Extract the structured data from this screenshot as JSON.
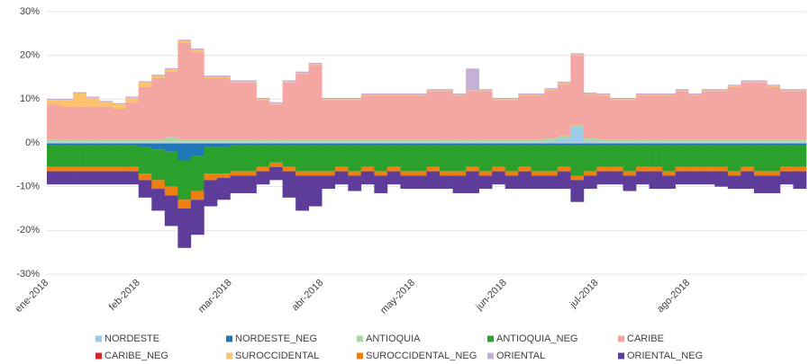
{
  "chart_data": {
    "type": "stacked-bar",
    "categories": [
      "ene-2018",
      null,
      null,
      null,
      null,
      null,
      null,
      "feb-2018",
      null,
      null,
      null,
      null,
      null,
      null,
      "mar-2018",
      null,
      null,
      null,
      null,
      null,
      null,
      "abr-2018",
      null,
      null,
      null,
      null,
      null,
      null,
      "may-2018",
      null,
      null,
      null,
      null,
      null,
      null,
      "jun-2018",
      null,
      null,
      null,
      null,
      null,
      null,
      "jul-2018",
      null,
      null,
      null,
      null,
      null,
      null,
      "ago-2018",
      null,
      null,
      null,
      null,
      null,
      null,
      null,
      null
    ],
    "series": [
      {
        "name": "NORDESTE",
        "color": "#9ecae9",
        "values": [
          0.3,
          0.3,
          0.3,
          0.3,
          0.3,
          0.3,
          0.3,
          0.3,
          0.3,
          0.3,
          0.3,
          0.3,
          0.3,
          0.3,
          0.3,
          0.3,
          0.3,
          0.3,
          0.3,
          0.3,
          0.3,
          0.3,
          0.3,
          0.3,
          0.3,
          0.3,
          0.3,
          0.3,
          0.3,
          0.3,
          0.3,
          0.3,
          0.3,
          0.3,
          0.3,
          0.3,
          0.3,
          0.3,
          0.5,
          1,
          3.5,
          0.5,
          0.3,
          0.3,
          0.3,
          0.3,
          0.3,
          0.3,
          0.3,
          0.3,
          0.3,
          0.3,
          0.3,
          0.3,
          0.3,
          0.3,
          0.3,
          0.3
        ]
      },
      {
        "name": "NORDESTE_NEG",
        "color": "#1f77b4",
        "values": [
          -0.5,
          -0.5,
          -0.5,
          -0.5,
          -0.5,
          -0.5,
          -0.5,
          -1,
          -1.5,
          -2,
          -4,
          -3,
          -1,
          -1,
          -0.5,
          -0.5,
          -0.5,
          -0.5,
          -0.5,
          -0.5,
          -0.5,
          -0.5,
          -0.5,
          -0.5,
          -0.5,
          -0.5,
          -0.5,
          -0.5,
          -0.5,
          -0.5,
          -0.5,
          -0.5,
          -0.5,
          -0.5,
          -0.5,
          -0.5,
          -0.5,
          -0.5,
          -0.5,
          -0.5,
          -0.5,
          -0.5,
          -0.5,
          -0.5,
          -0.5,
          -0.5,
          -0.5,
          -0.5,
          -0.5,
          -0.5,
          -0.5,
          -0.5,
          -0.5,
          -0.5,
          -0.5,
          -0.5,
          -0.5,
          -0.5
        ]
      },
      {
        "name": "ANTIOQUIA",
        "color": "#a6dba0",
        "values": [
          0.5,
          0.5,
          0.5,
          0.5,
          0.5,
          0.5,
          0.5,
          0.5,
          0.5,
          1,
          0.5,
          0.5,
          0.5,
          0.5,
          0.5,
          0.5,
          0.5,
          0.5,
          0.5,
          0.5,
          0.5,
          0.5,
          0.5,
          0.5,
          0.5,
          0.5,
          0.5,
          0.5,
          0.5,
          0.5,
          0.5,
          0.5,
          0.5,
          0.5,
          0.5,
          0.5,
          0.5,
          0.5,
          0.5,
          0.5,
          0.5,
          0.5,
          0.5,
          0.5,
          0.5,
          0.5,
          0.5,
          0.5,
          0.5,
          0.5,
          0.5,
          0.5,
          0.5,
          0.5,
          0.5,
          0.5,
          0.5,
          0.5
        ]
      },
      {
        "name": "ANTIOQUIA_NEG",
        "color": "#2ca02c",
        "values": [
          -5,
          -5,
          -5,
          -5,
          -5,
          -5,
          -5,
          -6,
          -7,
          -8,
          -9,
          -8,
          -6,
          -6,
          -6,
          -6,
          -5,
          -4,
          -5,
          -6,
          -6,
          -6,
          -5,
          -6,
          -5,
          -6,
          -5,
          -6,
          -6,
          -5,
          -6,
          -6,
          -5,
          -6,
          -5,
          -6,
          -5,
          -6,
          -6,
          -5,
          -7,
          -6,
          -5,
          -5,
          -6,
          -5,
          -5,
          -6,
          -5,
          -5,
          -5,
          -5,
          -6,
          -5,
          -6,
          -6,
          -5,
          -5
        ]
      },
      {
        "name": "CARIBE",
        "color": "#f4a6a3",
        "values": [
          8,
          7.5,
          7.5,
          7.5,
          7.5,
          7,
          8.5,
          12,
          14,
          15,
          22,
          20,
          14,
          14,
          13,
          13,
          9,
          8,
          13,
          15,
          17,
          9,
          9,
          9,
          10,
          10,
          10,
          10,
          10,
          11,
          11,
          10,
          11,
          11,
          9,
          9,
          10,
          10,
          11,
          12,
          16,
          10,
          10,
          9,
          9,
          10,
          10,
          10,
          11,
          10,
          11,
          11,
          12,
          13,
          13,
          12,
          11,
          11
        ]
      },
      {
        "name": "CARIBE_NEG",
        "color": "#d62728",
        "values": [
          0,
          0,
          0,
          0,
          0,
          0,
          0,
          0,
          0,
          0,
          0,
          0,
          0,
          0,
          0,
          0,
          0,
          0,
          0,
          0,
          0,
          0,
          0,
          0,
          0,
          0,
          0,
          0,
          0,
          0,
          0,
          0,
          0,
          0,
          0,
          0,
          0,
          0,
          0,
          0,
          0,
          0,
          0,
          0,
          0,
          0,
          0,
          0,
          0,
          0,
          0,
          0,
          0,
          0,
          0,
          0,
          0,
          0
        ]
      },
      {
        "name": "SUROCCIDENTAL",
        "color": "#fdc26b",
        "values": [
          1,
          1.5,
          3,
          2,
          1,
          1,
          1,
          1,
          0.5,
          0.5,
          0.5,
          0.5,
          0.3,
          0.3,
          0.2,
          0.2,
          0.2,
          0.2,
          0.2,
          0.2,
          0.2,
          0.2,
          0.2,
          0.2,
          0.2,
          0.2,
          0.2,
          0.2,
          0.2,
          0.2,
          0.2,
          0.2,
          0.2,
          0.2,
          0.2,
          0.2,
          0.2,
          0.2,
          0.2,
          0.2,
          0.2,
          0.2,
          0.2,
          0.2,
          0.2,
          0.2,
          0.2,
          0.2,
          0.2,
          0.2,
          0.2,
          0.2,
          0.2,
          0.2,
          0.2,
          0.2,
          0.2,
          0.2
        ]
      },
      {
        "name": "SUROCCIDENTAL_NEG",
        "color": "#f07f12",
        "values": [
          -1,
          -1,
          -1,
          -1,
          -1,
          -1,
          -1,
          -1.5,
          -2,
          -2,
          -2,
          -2,
          -1.5,
          -1,
          -1,
          -1,
          -1,
          -1,
          -1,
          -1,
          -1,
          -1,
          -1,
          -1,
          -1,
          -1,
          -1,
          -1,
          -1,
          -1,
          -1,
          -1,
          -1,
          -1,
          -1,
          -1,
          -1,
          -1,
          -1,
          -1,
          -1,
          -1,
          -1,
          -1,
          -1,
          -1,
          -1,
          -1,
          -1,
          -1,
          -1,
          -1,
          -1,
          -1,
          -1,
          -1,
          -1,
          -1
        ]
      },
      {
        "name": "ORIENTAL",
        "color": "#c5b0d5",
        "values": [
          0.3,
          0.3,
          0.3,
          0.3,
          0.3,
          0.3,
          0.3,
          0.3,
          0.3,
          0.3,
          0.3,
          0.3,
          0.3,
          0.3,
          0.3,
          0.3,
          0.3,
          0.3,
          0.3,
          0.3,
          0.3,
          0.3,
          0.3,
          0.3,
          0.3,
          0.3,
          0.3,
          0.3,
          0.3,
          0.3,
          0.3,
          0.3,
          5,
          0.3,
          0.3,
          0.3,
          0.3,
          0.3,
          0.3,
          0.3,
          0.3,
          0.3,
          0.3,
          0.3,
          0.3,
          0.3,
          0.3,
          0.3,
          0.3,
          0.3,
          0.3,
          0.3,
          0.3,
          0.3,
          0.3,
          0.3,
          0.3,
          0.3
        ]
      },
      {
        "name": "ORIENTAL_NEG",
        "color": "#5e3c99",
        "values": [
          -3,
          -3,
          -3,
          -3,
          -3,
          -3,
          -3,
          -4,
          -5,
          -7,
          -9,
          -8,
          -6,
          -5,
          -4,
          -4,
          -3,
          -3,
          -6,
          -8,
          -7,
          -3,
          -3,
          -3.5,
          -3,
          -4,
          -3,
          -3,
          -3,
          -4,
          -3,
          -4,
          -5,
          -3,
          -3,
          -3,
          -4,
          -3,
          -3,
          -4,
          -5,
          -3,
          -3,
          -3,
          -3.5,
          -3,
          -4,
          -3,
          -3,
          -3,
          -3,
          -3.5,
          -3,
          -4,
          -4,
          -4,
          -3,
          -4
        ]
      }
    ],
    "ylim": [
      -30,
      30
    ],
    "yticks": [
      {
        "value": -30,
        "label": "-30%"
      },
      {
        "value": -20,
        "label": "-20%"
      },
      {
        "value": -10,
        "label": "-10%"
      },
      {
        "value": 0,
        "label": "0%"
      },
      {
        "value": 10,
        "label": "10%"
      },
      {
        "value": 20,
        "label": "20%"
      },
      {
        "value": 30,
        "label": "30%"
      }
    ],
    "grid": true,
    "legend": "bottom"
  }
}
